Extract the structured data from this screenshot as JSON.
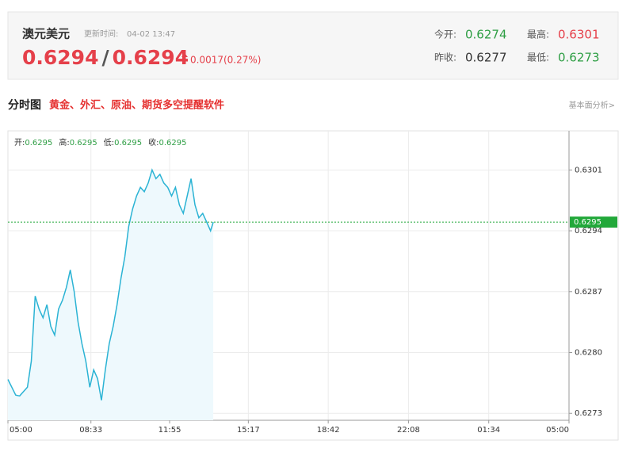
{
  "quote": {
    "name": "澳元美元",
    "update_label": "更新时间:",
    "update_time": "04-02 13:47",
    "bid": 0.6294,
    "separator": "/",
    "ask": 0.6294,
    "change": "0.0017(0.27%)",
    "stats": [
      {
        "label": "今开:",
        "value": 0.6274,
        "color": "#2e9e44"
      },
      {
        "label": "最高:",
        "value": 0.6301,
        "color": "#e5404a"
      },
      {
        "label": "昨收:",
        "value": 0.6277,
        "color": "#333333"
      },
      {
        "label": "最低:",
        "value": 0.6273,
        "color": "#2e9e44"
      }
    ]
  },
  "section": {
    "title": "分时图",
    "promo": "黄金、外汇、原油、期货多空提醒软件",
    "link": "基本面分析>"
  },
  "chart_data": {
    "type": "area",
    "info": [
      {
        "label": "开:",
        "value": 0.6295
      },
      {
        "label": "高:",
        "value": 0.6295
      },
      {
        "label": "低:",
        "value": 0.6295
      },
      {
        "label": "收:",
        "value": 0.6295
      }
    ],
    "x": [
      0,
      10,
      20,
      30,
      40,
      50,
      60,
      70,
      80,
      90,
      100,
      110,
      120,
      130,
      140,
      150,
      160,
      170,
      180,
      190,
      200,
      210,
      220,
      230,
      240,
      250,
      260,
      270,
      280,
      290,
      300,
      310,
      320,
      330,
      340,
      350,
      360,
      370,
      380,
      390,
      400,
      410,
      420,
      430,
      440,
      450,
      460,
      470,
      480,
      490,
      500,
      510,
      520,
      527
    ],
    "series": [
      {
        "name": "AUDUSD",
        "color": "#2bb3d4",
        "fill": "#eef9fd",
        "values": [
          0.62769,
          0.6276,
          0.62751,
          0.6275,
          0.62755,
          0.6276,
          0.6279,
          0.62865,
          0.6285,
          0.6284,
          0.62855,
          0.6283,
          0.6282,
          0.6285,
          0.6286,
          0.62875,
          0.62895,
          0.6287,
          0.62835,
          0.6281,
          0.6279,
          0.6276,
          0.6278,
          0.6277,
          0.62745,
          0.6278,
          0.6281,
          0.6283,
          0.62855,
          0.62885,
          0.6291,
          0.62945,
          0.62965,
          0.6298,
          0.6299,
          0.62985,
          0.62995,
          0.6301,
          0.63,
          0.63005,
          0.62995,
          0.6299,
          0.6298,
          0.6299,
          0.6297,
          0.6296,
          0.6298,
          0.63,
          0.6297,
          0.62955,
          0.6296,
          0.6295,
          0.6294,
          0.6295
        ]
      }
    ],
    "xlim": [
      0,
      1440
    ],
    "xticks": [
      {
        "value": 0,
        "label": "05:00"
      },
      {
        "value": 213,
        "label": "08:33"
      },
      {
        "value": 415,
        "label": "11:55"
      },
      {
        "value": 617,
        "label": "15:17"
      },
      {
        "value": 822,
        "label": "18:42"
      },
      {
        "value": 1028,
        "label": "22:08"
      },
      {
        "value": 1234,
        "label": "01:34"
      },
      {
        "value": 1440,
        "label": "05:00"
      }
    ],
    "ylim": [
      0.62722,
      0.63055
    ],
    "yticks": [
      0.6273,
      {
        "value": 0.628,
        "label": "0.6280"
      },
      0.6287,
      0.6294,
      0.6301
    ],
    "last_price": 0.6295,
    "last_color": "#22a83a",
    "grid": true
  }
}
